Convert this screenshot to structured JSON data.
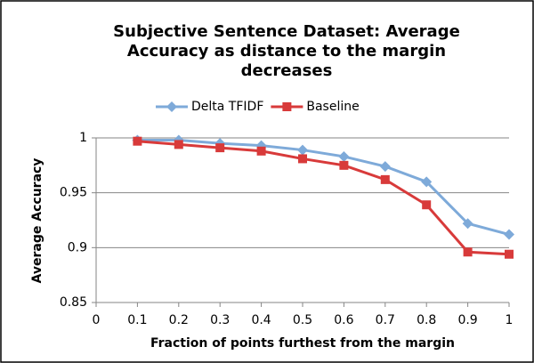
{
  "chart_data": {
    "type": "line",
    "title": [
      "Subjective Sentence Dataset: Average",
      "Accuracy as distance to the margin",
      "decreases"
    ],
    "xlabel": "Fraction of points furthest from the margin",
    "ylabel": "Average Accuracy",
    "x": [
      0.1,
      0.2,
      0.3,
      0.4,
      0.5,
      0.6,
      0.7,
      0.8,
      0.9,
      1
    ],
    "series": [
      {
        "name": "Delta TFIDF",
        "color": "#7eaad9",
        "marker": "diamond",
        "values": [
          0.998,
          0.998,
          0.995,
          0.993,
          0.989,
          0.983,
          0.974,
          0.96,
          0.922,
          0.912
        ]
      },
      {
        "name": "Baseline",
        "color": "#d83a3a",
        "marker": "square",
        "values": [
          0.997,
          0.994,
          0.991,
          0.988,
          0.981,
          0.975,
          0.962,
          0.939,
          0.896,
          0.894
        ]
      }
    ],
    "xlim": [
      0,
      1
    ],
    "xticks": [
      0,
      0.1,
      0.2,
      0.3,
      0.4,
      0.5,
      0.6,
      0.7,
      0.8,
      0.9,
      1
    ],
    "ylim": [
      0.85,
      1
    ],
    "yticks": [
      0.85,
      0.9,
      0.95,
      1
    ],
    "grid": true,
    "legend": "top"
  }
}
